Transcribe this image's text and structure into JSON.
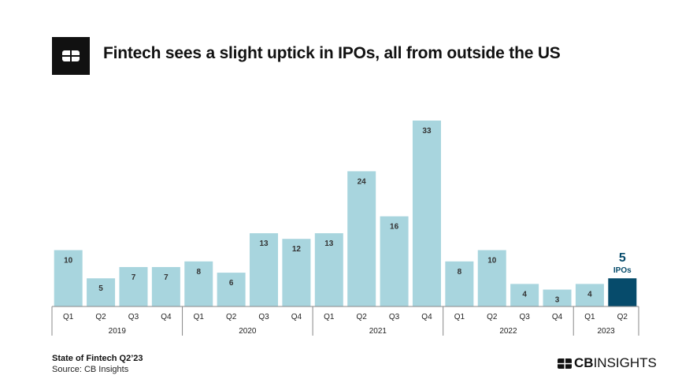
{
  "header": {
    "title": "Fintech sees a slight uptick in IPOs, all from outside the US",
    "logo_icon": "cb-insights-logo-icon"
  },
  "footer": {
    "report": "State of Fintech Q2’23",
    "source": "Source: CB Insights",
    "brand_bold": "CB",
    "brand_light": "INSIGHTS"
  },
  "chart_data": {
    "type": "bar",
    "title": "Fintech sees a slight uptick in IPOs, all from outside the US",
    "categories": [
      "Q1",
      "Q2",
      "Q3",
      "Q4",
      "Q1",
      "Q2",
      "Q3",
      "Q4",
      "Q1",
      "Q2",
      "Q3",
      "Q4",
      "Q1",
      "Q2",
      "Q3",
      "Q4",
      "Q1",
      "Q2"
    ],
    "groups": [
      {
        "label": "2019",
        "count": 4
      },
      {
        "label": "2020",
        "count": 4
      },
      {
        "label": "2021",
        "count": 4
      },
      {
        "label": "2022",
        "count": 4
      },
      {
        "label": "2023",
        "count": 2
      }
    ],
    "values": [
      10,
      5,
      7,
      7,
      8,
      6,
      13,
      12,
      13,
      24,
      16,
      33,
      8,
      10,
      4,
      3,
      4,
      5
    ],
    "highlight": {
      "index": 17,
      "value_label": "5",
      "unit_label": "IPOs"
    },
    "colors": {
      "bar": "#a8d5de",
      "highlight": "#064b6b",
      "label": "#333333"
    },
    "grid": false,
    "ylim": [
      0,
      33
    ]
  }
}
